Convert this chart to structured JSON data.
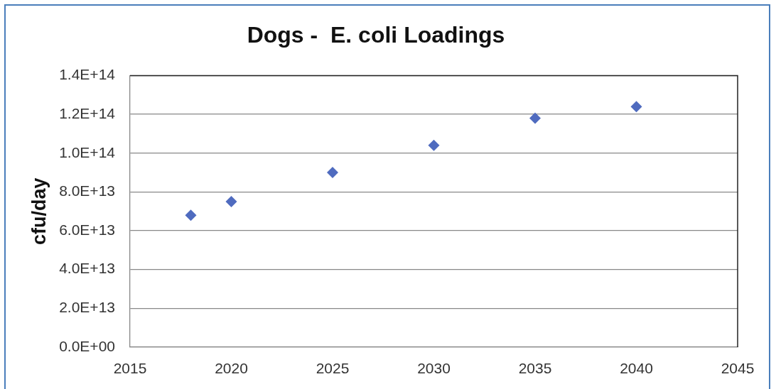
{
  "chart_data": {
    "type": "scatter",
    "title": "Dogs -  E. coli Loadings",
    "ylabel": "cfu/day",
    "x": [
      2018,
      2020,
      2025,
      2030,
      2035,
      2040
    ],
    "series": [
      {
        "color": "#4f6bbf",
        "values": [
          68000000000000.0,
          75000000000000.0,
          90000000000000.0,
          104000000000000.0,
          118000000000000.0,
          124000000000000.0
        ]
      }
    ],
    "xlim": [
      2015,
      2045
    ],
    "xticks": [
      2015,
      2020,
      2025,
      2030,
      2035,
      2040,
      2045
    ],
    "ylim": [
      0,
      140000000000000.0
    ],
    "yticks": [
      {
        "value": 0,
        "label": "0.0E+00"
      },
      {
        "value": 20000000000000.0,
        "label": "2.0E+13"
      },
      {
        "value": 40000000000000.0,
        "label": "4.0E+13"
      },
      {
        "value": 60000000000000.0,
        "label": "6.0E+13"
      },
      {
        "value": 80000000000000.0,
        "label": "8.0E+13"
      },
      {
        "value": 100000000000000.0,
        "label": "1.0E+14"
      },
      {
        "value": 120000000000000.0,
        "label": "1.2E+14"
      },
      {
        "value": 140000000000000.0,
        "label": "1.4E+14"
      }
    ],
    "grid": "y",
    "legend": false,
    "marker": "diamond"
  }
}
